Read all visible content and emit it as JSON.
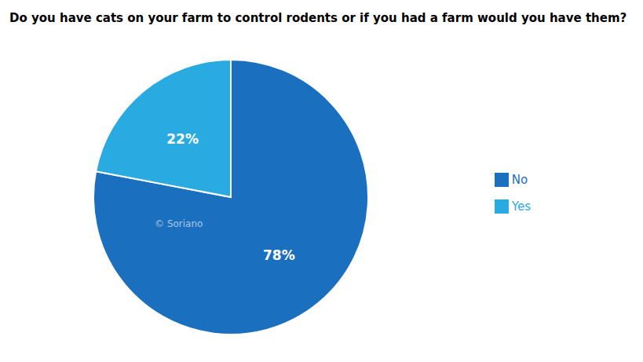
{
  "chart_data": {
    "type": "pie",
    "title": "Do you have cats on your farm to control rodents or if you had a farm would you have them?",
    "categories": [
      "No",
      "Yes"
    ],
    "values": [
      78,
      22
    ],
    "value_labels": [
      "78%",
      "22%"
    ],
    "colors": [
      "#1B6FBF",
      "#29ABE2"
    ],
    "data_labels": true,
    "legend": "right",
    "annotation": "© Soriano"
  }
}
